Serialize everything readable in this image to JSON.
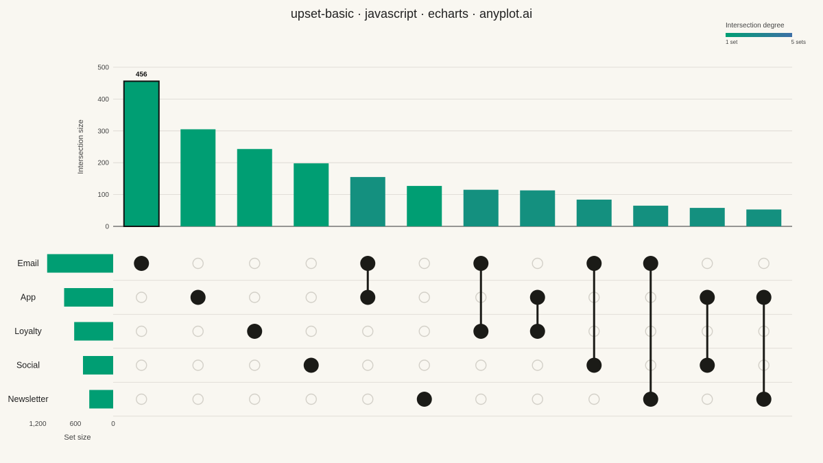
{
  "chart_data": {
    "type": "upset",
    "title": "upset-basic · javascript · echarts · anyplot.ai",
    "bar_axis": {
      "label": "Intersection size",
      "ticks": [
        0,
        100,
        200,
        300,
        400,
        500
      ],
      "ylim": [
        0,
        500
      ]
    },
    "set_axis": {
      "label": "Set size",
      "ticks": [
        "1,200",
        "600",
        "0"
      ],
      "xlim": [
        0,
        1200
      ]
    },
    "sets": [
      {
        "name": "Email",
        "size": 1050
      },
      {
        "name": "App",
        "size": 780
      },
      {
        "name": "Loyalty",
        "size": 620
      },
      {
        "name": "Social",
        "size": 480
      },
      {
        "name": "Newsletter",
        "size": 380
      }
    ],
    "intersections": [
      {
        "sets": [
          "Email"
        ],
        "value": 456,
        "label": "456",
        "highlight": true
      },
      {
        "sets": [
          "App"
        ],
        "value": 305
      },
      {
        "sets": [
          "Loyalty"
        ],
        "value": 243
      },
      {
        "sets": [
          "Social"
        ],
        "value": 198
      },
      {
        "sets": [
          "Email",
          "App"
        ],
        "value": 155
      },
      {
        "sets": [
          "Newsletter"
        ],
        "value": 127
      },
      {
        "sets": [
          "Email",
          "Loyalty"
        ],
        "value": 115
      },
      {
        "sets": [
          "App",
          "Loyalty"
        ],
        "value": 113
      },
      {
        "sets": [
          "Email",
          "Social"
        ],
        "value": 84
      },
      {
        "sets": [
          "Email",
          "Newsletter"
        ],
        "value": 65
      },
      {
        "sets": [
          "App",
          "Social"
        ],
        "value": 58
      },
      {
        "sets": [
          "App",
          "Newsletter"
        ],
        "value": 53
      }
    ],
    "legend": {
      "title": "Intersection degree",
      "min_label": "1 set",
      "max_label": "5 sets",
      "position": "top-right"
    },
    "colors": {
      "degree_1": "#009e73",
      "degree_2": "#14907f",
      "degree_5": "#3d6fa6",
      "dot_active": "#1b1b17",
      "dot_inactive": "#d3d0c8",
      "background": "#f9f7f1"
    },
    "grid": true
  }
}
